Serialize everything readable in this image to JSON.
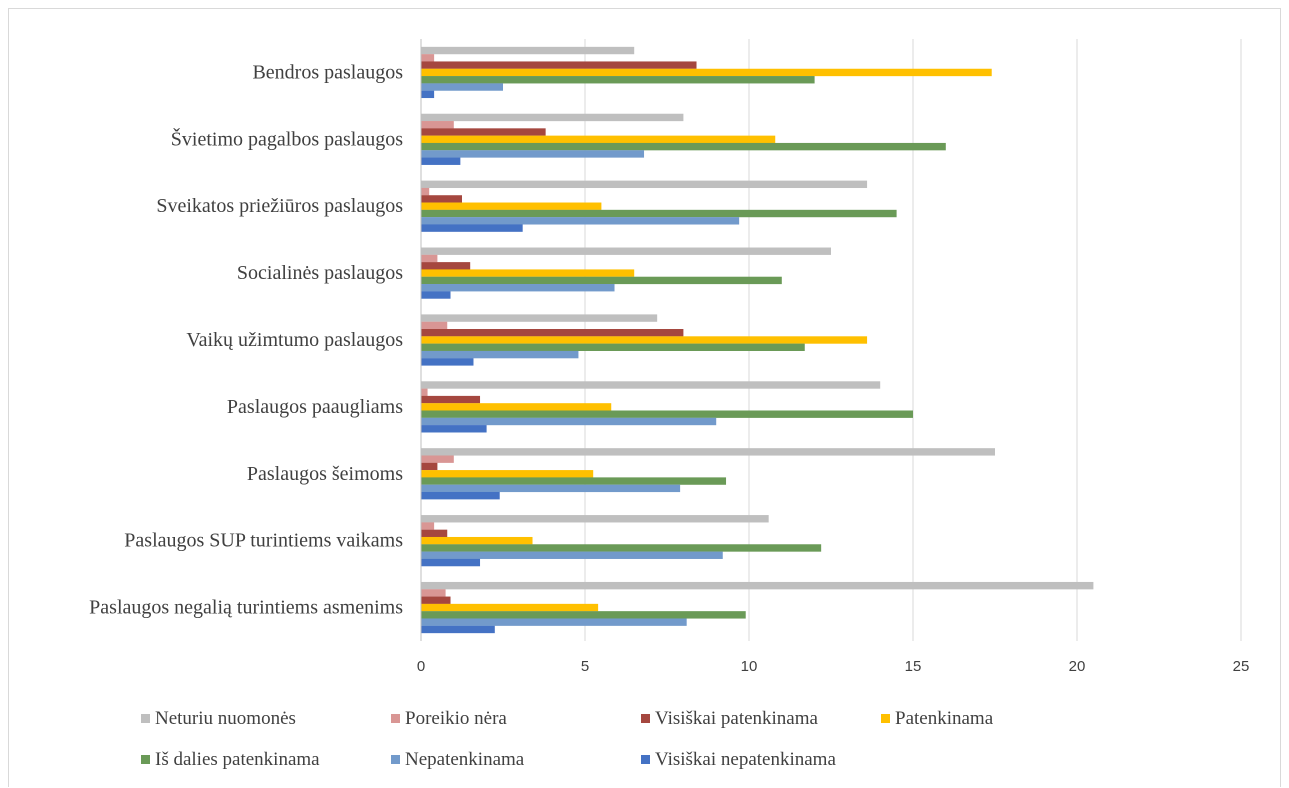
{
  "chart_data": {
    "type": "bar",
    "orientation": "horizontal",
    "categories": [
      "Bendros paslaugos",
      "Švietimo pagalbos paslaugos",
      "Sveikatos priežiūros paslaugos",
      "Socialinės paslaugos",
      "Vaikų užimtumo paslaugos",
      "Paslaugos paaugliams",
      "Paslaugos šeimoms",
      "Paslaugos SUP turintiems vaikams",
      "Paslaugos negalią turintiems asmenims"
    ],
    "series": [
      {
        "name": "Neturiu nuomonės",
        "color": "#bfbfbf",
        "values": [
          6.5,
          8.0,
          13.6,
          12.5,
          7.2,
          14.0,
          17.5,
          10.6,
          20.5
        ]
      },
      {
        "name": "Poreikio nėra",
        "color": "#d99694",
        "values": [
          0.4,
          1.0,
          0.25,
          0.5,
          0.8,
          0.2,
          1.0,
          0.4,
          0.75
        ]
      },
      {
        "name": "Visiškai patenkinama",
        "color": "#a5473f",
        "values": [
          8.4,
          3.8,
          1.25,
          1.5,
          8.0,
          1.8,
          0.5,
          0.8,
          0.9
        ]
      },
      {
        "name": "Patenkinama",
        "color": "#ffc000",
        "values": [
          17.4,
          10.8,
          5.5,
          6.5,
          13.6,
          5.8,
          5.25,
          3.4,
          5.4
        ]
      },
      {
        "name": "Iš dalies patenkinama",
        "color": "#6a9a57",
        "values": [
          12.0,
          16.0,
          14.5,
          11.0,
          11.7,
          15.0,
          9.3,
          12.2,
          9.9
        ]
      },
      {
        "name": "Nepatenkinama",
        "color": "#729acb",
        "values": [
          2.5,
          6.8,
          9.7,
          5.9,
          4.8,
          9.0,
          7.9,
          9.2,
          8.1
        ]
      },
      {
        "name": "Visiškai nepatenkinama",
        "color": "#4472c4",
        "values": [
          0.4,
          1.2,
          3.1,
          0.9,
          1.6,
          2.0,
          2.4,
          1.8,
          2.25
        ]
      }
    ],
    "xlim": [
      0,
      25
    ],
    "xticks": [
      "0",
      "5",
      "10",
      "15",
      "20",
      "25"
    ],
    "grid": true,
    "legend_position": "bottom",
    "title": "",
    "xlabel": "",
    "ylabel": ""
  }
}
